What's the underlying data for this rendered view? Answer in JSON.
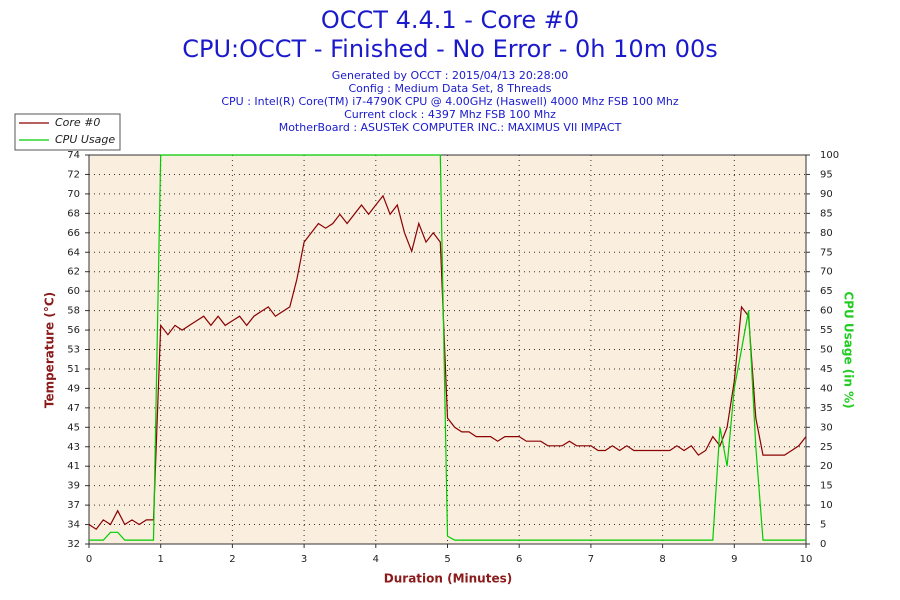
{
  "chart_data": {
    "type": "line",
    "title": "OCCT 4.4.1 - Core #0",
    "subtitle": "CPU:OCCT - Finished - No Error - 0h 10m 00s",
    "info_lines": [
      "Generated by OCCT : 2015/04/13 20:28:00",
      "Config : Medium Data Set, 8 Threads",
      "CPU : Intel(R) Core(TM) i7-4790K CPU @ 4.00GHz (Haswell) 4000 Mhz FSB 100 Mhz",
      "Current clock : 4397 Mhz FSB 100 Mhz",
      "MotherBoard : ASUSTeK COMPUTER INC.: MAXIMUS VII IMPACT"
    ],
    "x_label": "Duration (Minutes)",
    "y_label": "Temperature (°C)",
    "y2_label": "CPU Usage (in %)",
    "legend": "top-left",
    "grid": true,
    "xlim": [
      0,
      10
    ],
    "xticks": [
      0,
      1,
      2,
      3,
      4,
      5,
      6,
      7,
      8,
      9,
      10
    ],
    "ylim": [
      32.4,
      74.4
    ],
    "yticks": [
      {
        "value": 32.4,
        "label": "32"
      },
      {
        "value": 34.5,
        "label": "34"
      },
      {
        "value": 36.6,
        "label": "37"
      },
      {
        "value": 38.7,
        "label": "39"
      },
      {
        "value": 40.8,
        "label": "41"
      },
      {
        "value": 42.9,
        "label": "43"
      },
      {
        "value": 45,
        "label": "45"
      },
      {
        "value": 47.1,
        "label": "47"
      },
      {
        "value": 49.2,
        "label": "49"
      },
      {
        "value": 51.3,
        "label": "51"
      },
      {
        "value": 53.4,
        "label": "53"
      },
      {
        "value": 55.5,
        "label": "56"
      },
      {
        "value": 57.6,
        "label": "58"
      },
      {
        "value": 59.7,
        "label": "60"
      },
      {
        "value": 61.8,
        "label": "62"
      },
      {
        "value": 63.9,
        "label": "64"
      },
      {
        "value": 66,
        "label": "66"
      },
      {
        "value": 68.1,
        "label": "68"
      },
      {
        "value": 70.2,
        "label": "70"
      },
      {
        "value": 72.3,
        "label": "72"
      },
      {
        "value": 74.4,
        "label": "74"
      }
    ],
    "y2lim": [
      0,
      100
    ],
    "y2ticks": [
      0,
      5,
      10,
      15,
      20,
      25,
      30,
      35,
      40,
      45,
      50,
      55,
      60,
      65,
      70,
      75,
      80,
      85,
      90,
      95,
      100
    ],
    "x": [
      0,
      0.1,
      0.2,
      0.3,
      0.4,
      0.5,
      0.6,
      0.7,
      0.8,
      0.9,
      1,
      1.1,
      1.2,
      1.3,
      1.4,
      1.5,
      1.6,
      1.7,
      1.8,
      1.9,
      2,
      2.1,
      2.2,
      2.3,
      2.4,
      2.5,
      2.6,
      2.7,
      2.8,
      2.9,
      3,
      3.1,
      3.2,
      3.3,
      3.4,
      3.5,
      3.6,
      3.7,
      3.8,
      3.9,
      4,
      4.1,
      4.2,
      4.3,
      4.4,
      4.5,
      4.6,
      4.7,
      4.8,
      4.9,
      5,
      5.1,
      5.2,
      5.3,
      5.4,
      5.5,
      5.6,
      5.7,
      5.8,
      5.9,
      6,
      6.1,
      6.2,
      6.3,
      6.4,
      6.5,
      6.6,
      6.7,
      6.8,
      6.9,
      7,
      7.1,
      7.2,
      7.3,
      7.4,
      7.5,
      7.6,
      7.7,
      7.8,
      7.9,
      8,
      8.1,
      8.2,
      8.3,
      8.4,
      8.5,
      8.6,
      8.7,
      8.8,
      8.9,
      9,
      9.1,
      9.2,
      9.3,
      9.4,
      9.5,
      9.6,
      9.7,
      9.8,
      9.9,
      10
    ],
    "series": [
      {
        "name": "Core #0",
        "color": "#8b0000",
        "axis": "y",
        "values": [
          34.5,
          34,
          35,
          34.5,
          36,
          34.5,
          35,
          34.5,
          35,
          35,
          56,
          55,
          56,
          55.5,
          56,
          56.5,
          57,
          56,
          57,
          56,
          56.5,
          57,
          56,
          57,
          57.5,
          58,
          57,
          57.5,
          58,
          61,
          65,
          66,
          67,
          66.5,
          67,
          68,
          67,
          68,
          69,
          68,
          69,
          70,
          68,
          69,
          66,
          64,
          67,
          65,
          66,
          65,
          46,
          45,
          44.5,
          44.5,
          44,
          44,
          44,
          43.5,
          44,
          44,
          44,
          43.5,
          43.5,
          43.5,
          43,
          43,
          43,
          43.5,
          43,
          43,
          43,
          42.5,
          42.5,
          43,
          42.5,
          43,
          42.5,
          42.5,
          42.5,
          42.5,
          42.5,
          42.5,
          43,
          42.5,
          43,
          42,
          42.5,
          44,
          43,
          45,
          50,
          58,
          57,
          46,
          42,
          42,
          42,
          42,
          42.5,
          43,
          44
        ]
      },
      {
        "name": "CPU Usage",
        "color": "#00cc00",
        "axis": "y2",
        "values": [
          1,
          1,
          1,
          3,
          3,
          1,
          1,
          1,
          1,
          1,
          100,
          100,
          100,
          100,
          100,
          100,
          100,
          100,
          100,
          100,
          100,
          100,
          100,
          100,
          100,
          100,
          100,
          100,
          100,
          100,
          100,
          100,
          100,
          100,
          100,
          100,
          100,
          100,
          100,
          100,
          100,
          100,
          100,
          100,
          100,
          100,
          100,
          100,
          100,
          100,
          2,
          1,
          1,
          1,
          1,
          1,
          1,
          1,
          1,
          1,
          1,
          1,
          1,
          1,
          1,
          1,
          1,
          1,
          1,
          1,
          1,
          1,
          1,
          1,
          1,
          1,
          1,
          1,
          1,
          1,
          1,
          1,
          1,
          1,
          1,
          1,
          1,
          1,
          30,
          20,
          40,
          50,
          60,
          25,
          1,
          1,
          1,
          1,
          1,
          1,
          1
        ]
      }
    ]
  }
}
